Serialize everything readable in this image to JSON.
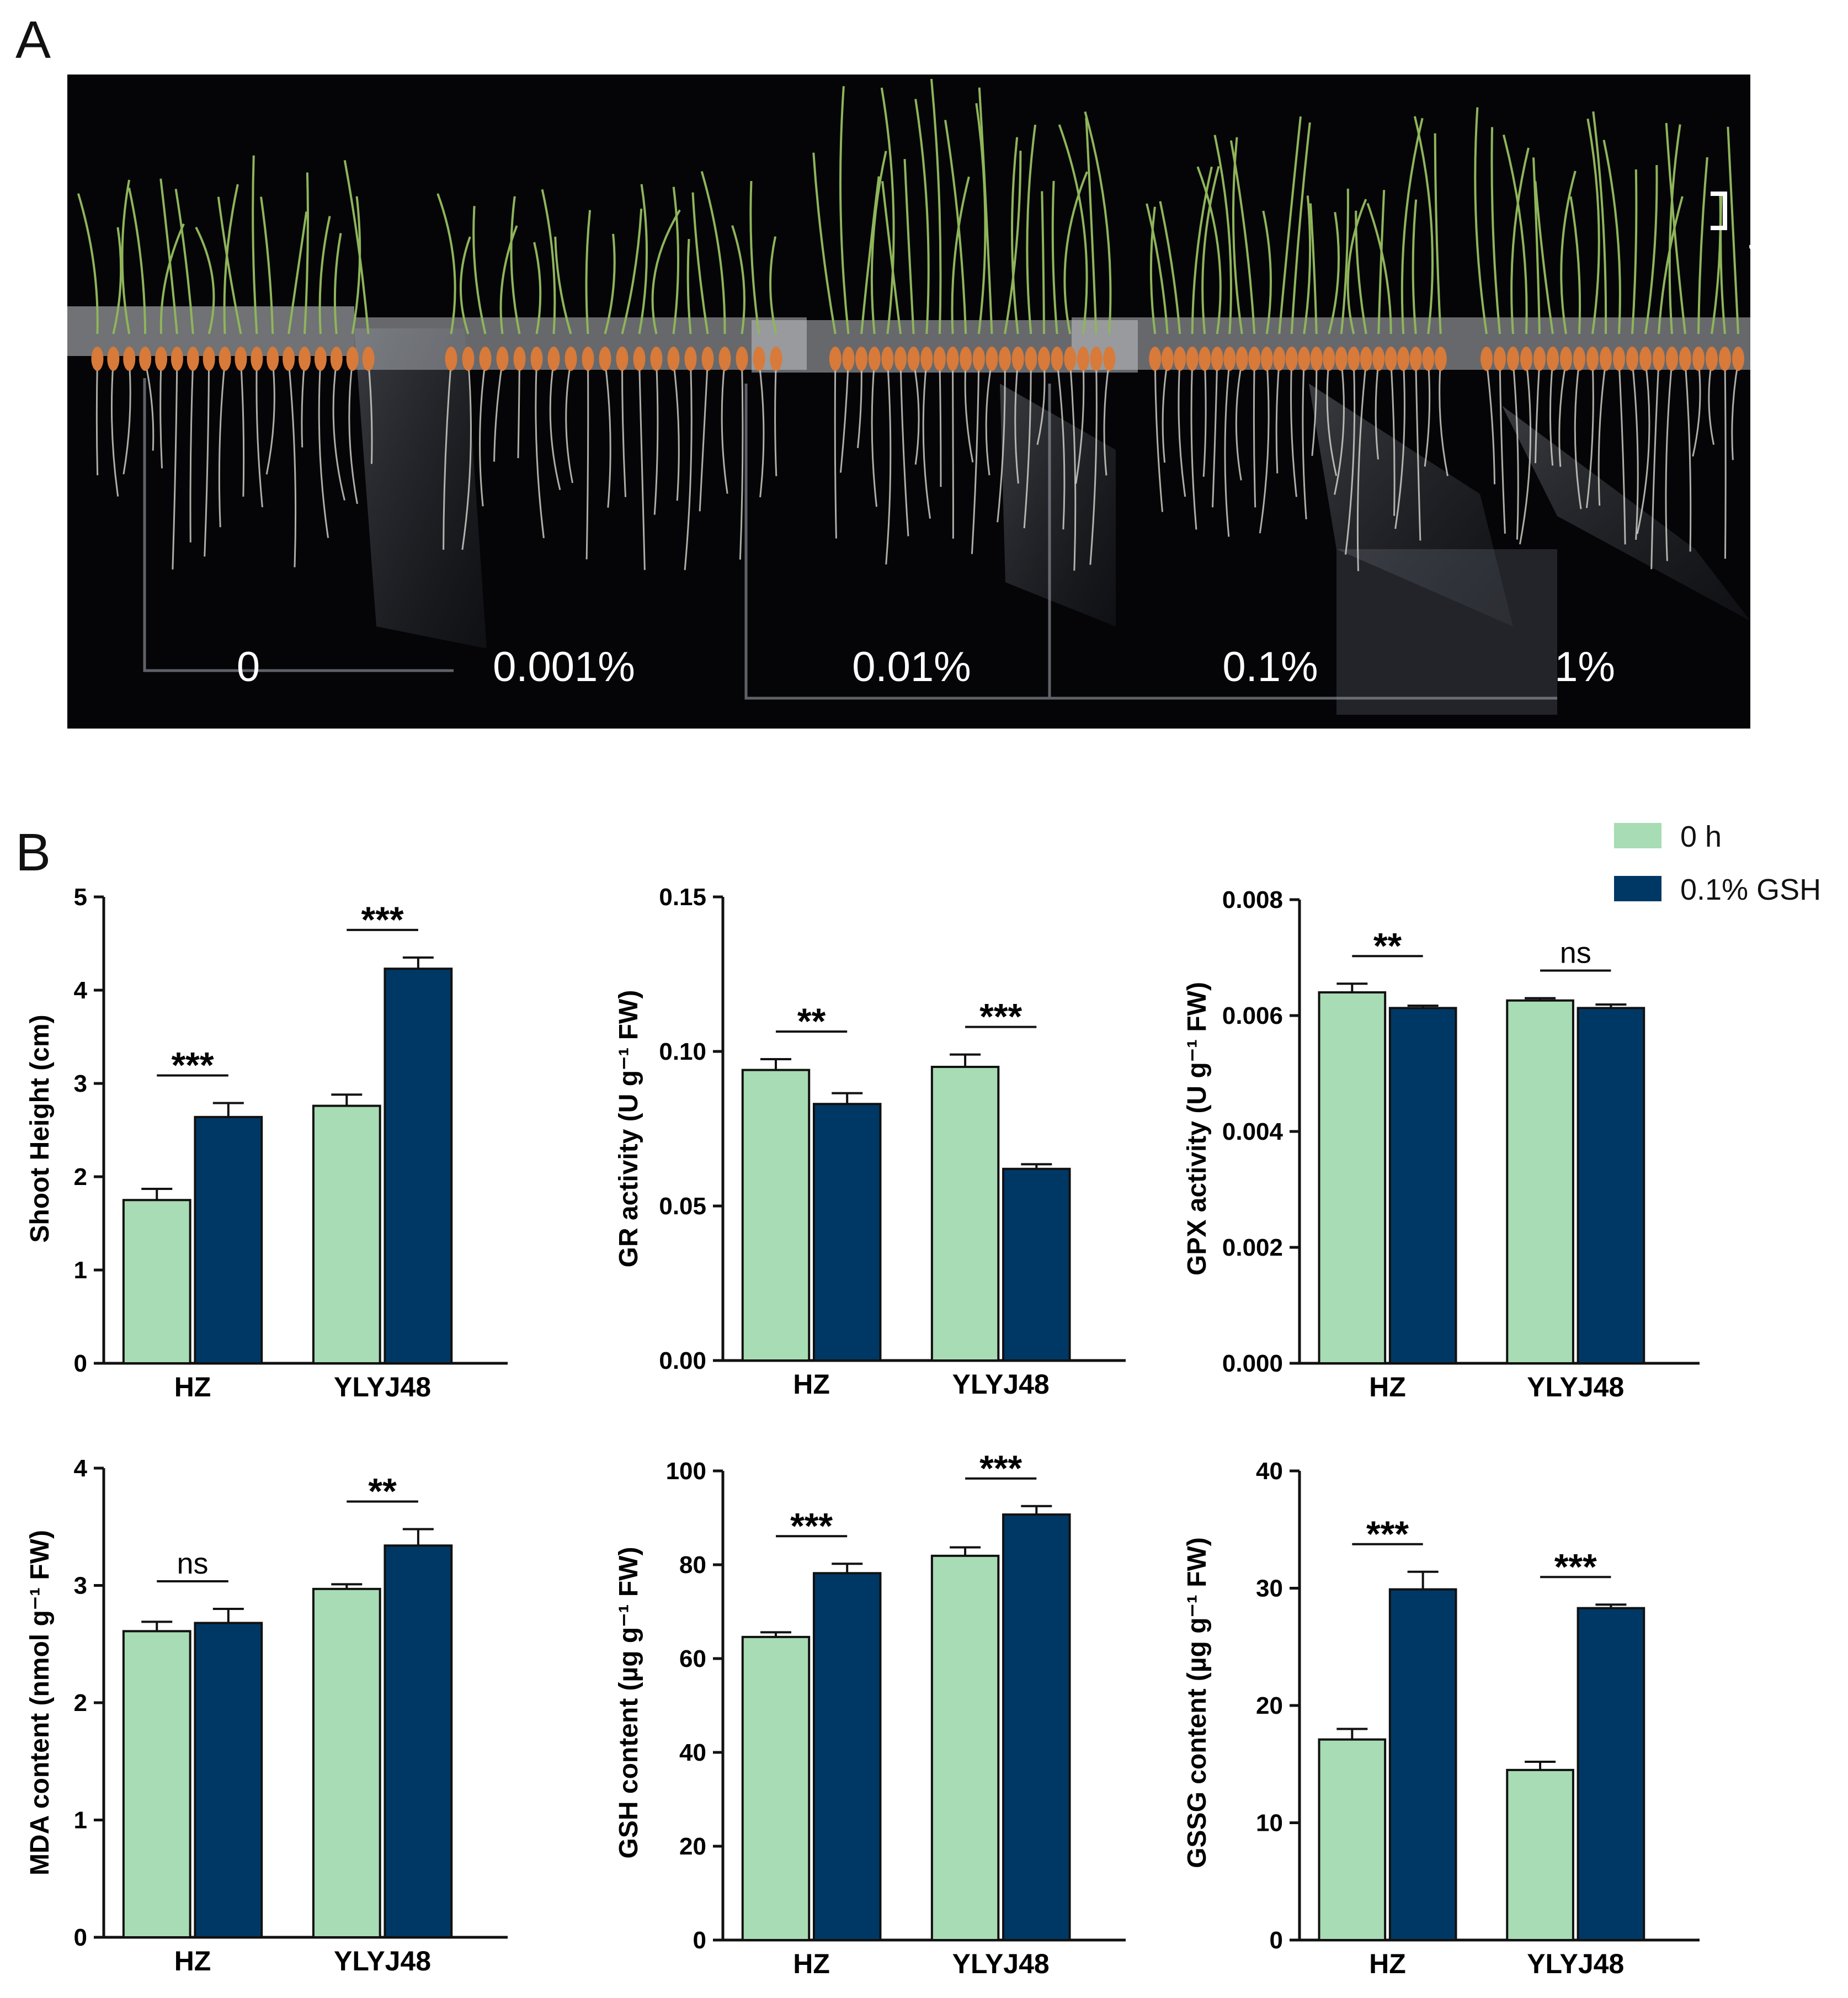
{
  "panels": {
    "a": "A",
    "b": "B"
  },
  "photo": {
    "concentration_labels": [
      "0",
      "0.001%",
      "0.01%",
      "0.1%",
      "1%"
    ],
    "scale_bar": "1 cm"
  },
  "legend": {
    "items": [
      {
        "label": "0 h",
        "color": "#a8dcb4"
      },
      {
        "label": "0.1% GSH",
        "color": "#003865"
      }
    ]
  },
  "colors": {
    "control": "#a8dcb4",
    "treatment": "#003865",
    "axis": "#111111"
  },
  "chart_data": [
    {
      "type": "bar",
      "categories": [
        "HZ",
        "YLYJ48"
      ],
      "series": [
        {
          "name": "0 h",
          "values": [
            1.75,
            2.76
          ],
          "errors": [
            0.12,
            0.12
          ]
        },
        {
          "name": "0.1% GSH",
          "values": [
            2.64,
            4.23
          ],
          "errors": [
            0.15,
            0.12
          ]
        }
      ],
      "ylabel": "Shoot Height (cm)",
      "ylim": [
        0,
        5
      ],
      "yticks": [
        "0",
        "1",
        "2",
        "3",
        "4",
        "5"
      ],
      "significance": [
        "***",
        "***"
      ]
    },
    {
      "type": "bar",
      "categories": [
        "HZ",
        "YLYJ48"
      ],
      "series": [
        {
          "name": "0 h",
          "values": [
            0.094,
            0.095
          ],
          "errors": [
            0.0035,
            0.004
          ]
        },
        {
          "name": "0.1% GSH",
          "values": [
            0.083,
            0.062
          ],
          "errors": [
            0.0035,
            0.0015
          ]
        }
      ],
      "ylabel": "GR activity (U g⁻¹ FW)",
      "ylim": [
        0,
        0.15
      ],
      "yticks": [
        "0.00",
        "0.05",
        "0.10",
        "0.15"
      ],
      "significance": [
        "**",
        "***"
      ]
    },
    {
      "type": "bar",
      "categories": [
        "HZ",
        "YLYJ48"
      ],
      "series": [
        {
          "name": "0 h",
          "values": [
            0.0064,
            0.00626
          ],
          "errors": [
            0.00015,
            4e-05
          ]
        },
        {
          "name": "0.1% GSH",
          "values": [
            0.00613,
            0.00613
          ],
          "errors": [
            4e-05,
            6e-05
          ]
        }
      ],
      "ylabel": "GPX activity (U g⁻¹ FW)",
      "ylim": [
        0,
        0.008
      ],
      "yticks": [
        "0.000",
        "0.002",
        "0.004",
        "0.006",
        "0.008"
      ],
      "significance": [
        "**",
        "ns"
      ]
    },
    {
      "type": "bar",
      "categories": [
        "HZ",
        "YLYJ48"
      ],
      "series": [
        {
          "name": "0 h",
          "values": [
            2.61,
            2.97
          ],
          "errors": [
            0.08,
            0.04
          ]
        },
        {
          "name": "0.1% GSH",
          "values": [
            2.68,
            3.34
          ],
          "errors": [
            0.12,
            0.14
          ]
        }
      ],
      "ylabel": "MDA content (nmol g⁻¹ FW)",
      "ylim": [
        0,
        4
      ],
      "yticks": [
        "0",
        "1",
        "2",
        "3",
        "4"
      ],
      "significance": [
        "ns",
        "**"
      ]
    },
    {
      "type": "bar",
      "categories": [
        "HZ",
        "YLYJ48"
      ],
      "series": [
        {
          "name": "0 h",
          "values": [
            64.6,
            81.9
          ],
          "errors": [
            1.0,
            1.8
          ]
        },
        {
          "name": "0.1% GSH",
          "values": [
            78.2,
            90.7
          ],
          "errors": [
            2.0,
            1.8
          ]
        }
      ],
      "ylabel": "GSH content (µg g⁻¹ FW)",
      "ylim": [
        0,
        100
      ],
      "yticks": [
        "0",
        "20",
        "40",
        "60",
        "80",
        "100"
      ],
      "significance": [
        "***",
        "***"
      ]
    },
    {
      "type": "bar",
      "categories": [
        "HZ",
        "YLYJ48"
      ],
      "series": [
        {
          "name": "0 h",
          "values": [
            17.1,
            14.5
          ],
          "errors": [
            0.9,
            0.7
          ]
        },
        {
          "name": "0.1% GSH",
          "values": [
            29.9,
            28.3
          ],
          "errors": [
            1.5,
            0.3
          ]
        }
      ],
      "ylabel": "GSSG content (µg g⁻¹ FW)",
      "ylim": [
        0,
        40
      ],
      "yticks": [
        "0",
        "10",
        "20",
        "30",
        "40"
      ],
      "significance": [
        "***",
        "***"
      ]
    }
  ]
}
